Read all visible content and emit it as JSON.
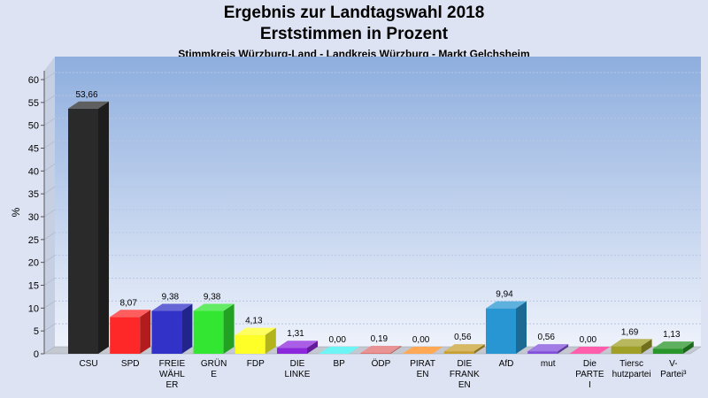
{
  "header": {
    "title": "Ergebnis zur Landtagswahl 2018",
    "subtitle": "Erststimmen in Prozent",
    "subsubtitle": "Stimmkreis Würzburg-Land - Landkreis Würzburg - Markt Gelchsheim"
  },
  "chart_data": {
    "type": "bar",
    "title": "Ergebnis zur Landtagswahl 2018",
    "subtitle": "Erststimmen in Prozent",
    "ylabel": "%",
    "xlabel": "",
    "ylim": [
      0,
      60
    ],
    "yticks": [
      0,
      5,
      10,
      15,
      20,
      25,
      30,
      35,
      40,
      45,
      50,
      55,
      60
    ],
    "grid": true,
    "legend": "none",
    "categories": [
      [
        "CSU"
      ],
      [
        "SPD"
      ],
      [
        "FREIE",
        "WÄHL",
        "ER"
      ],
      [
        "GRÜN",
        "E"
      ],
      [
        "FDP"
      ],
      [
        "DIE",
        "LINKE"
      ],
      [
        "BP"
      ],
      [
        "ÖDP"
      ],
      [
        "PIRAT",
        "EN"
      ],
      [
        "DIE",
        "FRANK",
        "EN"
      ],
      [
        "AfD"
      ],
      [
        "mut"
      ],
      [
        "Die",
        "PARTE",
        "I"
      ],
      [
        "Tiersc",
        "hutzpartei"
      ],
      [
        "V-",
        "Partei³"
      ]
    ],
    "values": [
      53.66,
      8.07,
      9.38,
      9.38,
      4.13,
      1.31,
      0.0,
      0.19,
      0.0,
      0.56,
      9.94,
      0.56,
      0.0,
      1.69,
      1.13
    ],
    "value_labels": [
      "53,66",
      "8,07",
      "9,38",
      "9,38",
      "4,13",
      "1,31",
      "0,00",
      "0,19",
      "0,00",
      "0,56",
      "9,94",
      "0,56",
      "0,00",
      "1,69",
      "1,13"
    ],
    "colors": [
      "#2a2a2a",
      "#ff2828",
      "#3232c8",
      "#32e632",
      "#ffff28",
      "#8c28dc",
      "#3cf0f0",
      "#e07070",
      "#ff8c1e",
      "#c8a032",
      "#2896d2",
      "#8250dc",
      "#ff2890",
      "#a0a028",
      "#28962a"
    ]
  }
}
